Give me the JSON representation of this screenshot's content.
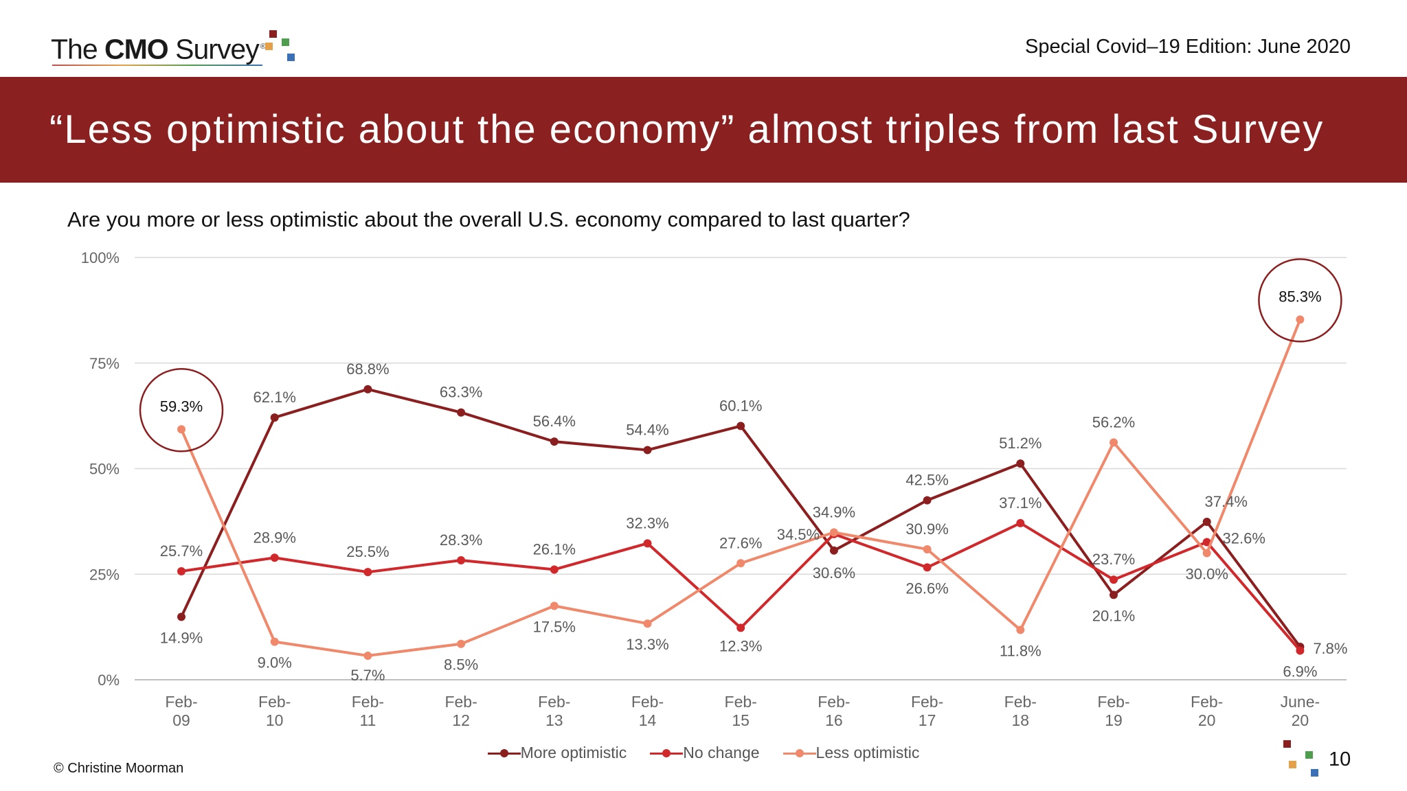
{
  "header": {
    "logo": {
      "the": "The ",
      "cmo": "CMO",
      "survey": " Survey",
      "reg": "®"
    },
    "edition": "Special Covid–19 Edition: June 2020"
  },
  "banner": {
    "title": "“Less optimistic about the economy” almost triples from last Survey"
  },
  "question": "Are you more or less optimistic about the overall U.S. economy compared to last quarter?",
  "colors": {
    "banner": "#8b2020",
    "more_optimistic": "#8b1e1e",
    "no_change": "#d0282b",
    "less_optimistic": "#f0896b",
    "highlight_circle": "#8b1e1e",
    "logo_squares": [
      "#8b1e1e",
      "#e5a04a",
      "#4f9d4f",
      "#3b6fb6"
    ]
  },
  "chart_data": {
    "type": "line",
    "title": "",
    "xlabel": "",
    "ylabel": "",
    "ylim": [
      0,
      100
    ],
    "yticks": [
      "0%",
      "25%",
      "50%",
      "75%",
      "100%"
    ],
    "categories": [
      [
        "Feb-",
        "09"
      ],
      [
        "Feb-",
        "10"
      ],
      [
        "Feb-",
        "11"
      ],
      [
        "Feb-",
        "12"
      ],
      [
        "Feb-",
        "13"
      ],
      [
        "Feb-",
        "14"
      ],
      [
        "Feb-",
        "15"
      ],
      [
        "Feb-",
        "16"
      ],
      [
        "Feb-",
        "17"
      ],
      [
        "Feb-",
        "18"
      ],
      [
        "Feb-",
        "19"
      ],
      [
        "Feb-",
        "20"
      ],
      [
        "June-",
        "20"
      ]
    ],
    "series": [
      {
        "name": "More optimistic",
        "key": "more_optimistic",
        "values": [
          14.9,
          62.1,
          68.8,
          63.3,
          56.4,
          54.4,
          60.1,
          30.6,
          42.5,
          51.2,
          20.1,
          37.4,
          7.8
        ],
        "labels": [
          "14.9%",
          "62.1%",
          "68.8%",
          "63.3%",
          "56.4%",
          "54.4%",
          "60.1%",
          "30.6%",
          "42.5%",
          "51.2%",
          "20.1%",
          "37.4%",
          "7.8%"
        ]
      },
      {
        "name": "No change",
        "key": "no_change",
        "values": [
          25.7,
          28.9,
          25.5,
          28.3,
          26.1,
          32.3,
          12.3,
          34.5,
          26.6,
          37.1,
          23.7,
          32.6,
          6.9
        ],
        "labels": [
          "25.7%",
          "28.9%",
          "25.5%",
          "28.3%",
          "26.1%",
          "32.3%",
          "12.3%",
          "34.5%",
          "26.6%",
          "37.1%",
          "23.7%",
          "32.6%",
          "6.9%"
        ]
      },
      {
        "name": "Less optimistic",
        "key": "less_optimistic",
        "values": [
          59.3,
          9.0,
          5.7,
          8.5,
          17.5,
          13.3,
          27.6,
          34.9,
          30.9,
          11.8,
          56.2,
          30.0,
          85.3
        ],
        "labels": [
          "59.3%",
          "9.0%",
          "5.7%",
          "8.5%",
          "17.5%",
          "13.3%",
          "27.6%",
          "34.9%",
          "30.9%",
          "11.8%",
          "56.2%",
          "30.0%",
          "85.3%"
        ]
      }
    ],
    "highlighted": [
      {
        "series": "less_optimistic",
        "index": 0
      },
      {
        "series": "less_optimistic",
        "index": 12
      }
    ],
    "legend": [
      "More optimistic",
      "No change",
      "Less optimistic"
    ],
    "legend_position": "bottom-center",
    "grid": true
  },
  "footer": {
    "copyright": "© Christine Moorman",
    "page_number": "10"
  }
}
